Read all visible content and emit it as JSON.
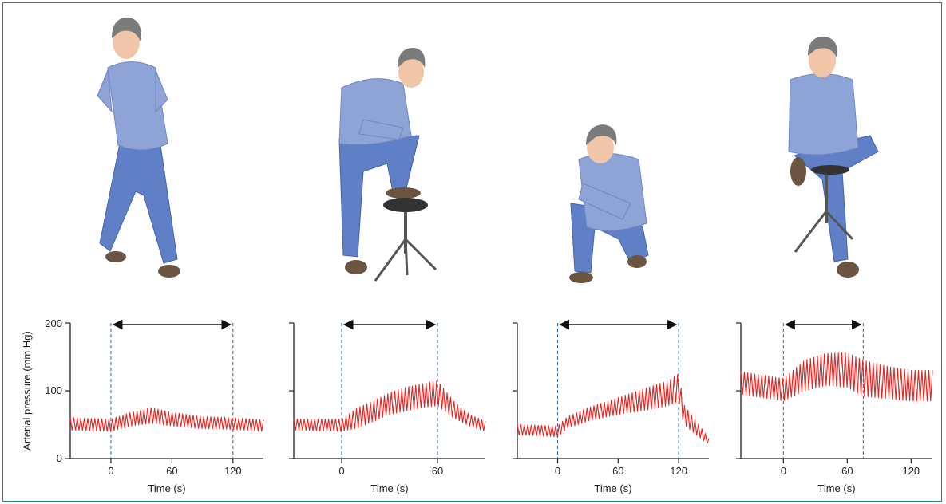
{
  "figure": {
    "ylabel": "Arterial pressure (mm Hg)",
    "y_ticks": [
      "200",
      "100",
      "0"
    ],
    "colors": {
      "frame": "#1f7f7a",
      "trace": "#e8231f",
      "shirt": "#8ea3d6",
      "jeans": "#5f7fc6",
      "hair": "#7b7b7b",
      "skin": "#f0c5a8",
      "shoes": "#6b5440",
      "stool": "#333333"
    }
  },
  "panels": [
    {
      "pose": "legs-crossed-standing",
      "xlabel": "Time (s)",
      "x_ticks": [
        "0",
        "60",
        "120"
      ],
      "tick_values": [
        0,
        60,
        120
      ],
      "xlim": [
        -40,
        150
      ],
      "interval": [
        0,
        120
      ]
    },
    {
      "pose": "foot-on-stool",
      "xlabel": "Time (s)",
      "x_ticks": [
        "0",
        "60"
      ],
      "tick_values": [
        0,
        60
      ],
      "xlim": [
        -30,
        90
      ],
      "interval": [
        0,
        60
      ]
    },
    {
      "pose": "squatting",
      "xlabel": "Time (s)",
      "x_ticks": [
        "0",
        "60",
        "120"
      ],
      "tick_values": [
        0,
        60,
        120
      ],
      "xlim": [
        -40,
        150
      ],
      "interval": [
        0,
        120
      ]
    },
    {
      "pose": "sitting-legs-crossed",
      "xlabel": "Time (s)",
      "x_ticks": [
        "0",
        "60",
        "120"
      ],
      "tick_values": [
        0,
        60,
        120
      ],
      "xlim": [
        -40,
        140
      ],
      "interval": [
        0,
        75
      ]
    }
  ],
  "chart_data": [
    {
      "type": "line",
      "xlabel": "Time (s)",
      "ylabel": "Arterial pressure (mm Hg)",
      "ylim": [
        0,
        200
      ],
      "xlim": [
        -40,
        150
      ],
      "series": [
        {
          "x": [
            -40,
            0,
            20,
            40,
            60,
            90,
            120,
            150
          ],
          "upper": [
            60,
            58,
            68,
            75,
            68,
            62,
            60,
            57
          ],
          "lower": [
            42,
            40,
            48,
            52,
            48,
            44,
            43,
            40
          ]
        }
      ]
    },
    {
      "type": "line",
      "xlabel": "Time (s)",
      "ylabel": "Arterial pressure (mm Hg)",
      "ylim": [
        0,
        200
      ],
      "xlim": [
        -30,
        90
      ],
      "series": [
        {
          "x": [
            -30,
            0,
            10,
            20,
            30,
            40,
            50,
            60,
            70,
            80,
            90
          ],
          "upper": [
            58,
            58,
            75,
            85,
            97,
            105,
            110,
            115,
            85,
            65,
            55
          ],
          "lower": [
            42,
            40,
            45,
            55,
            65,
            70,
            75,
            78,
            60,
            48,
            40
          ]
        }
      ]
    },
    {
      "type": "line",
      "xlabel": "Time (s)",
      "ylabel": "Arterial pressure (mm Hg)",
      "ylim": [
        0,
        200
      ],
      "xlim": [
        -40,
        150
      ],
      "series": [
        {
          "x": [
            -40,
            0,
            10,
            30,
            60,
            90,
            110,
            120,
            125,
            150
          ],
          "upper": [
            50,
            48,
            62,
            75,
            90,
            105,
            115,
            125,
            80,
            30
          ],
          "lower": [
            35,
            32,
            45,
            55,
            65,
            72,
            78,
            85,
            50,
            20
          ]
        }
      ]
    },
    {
      "type": "line",
      "xlabel": "Time (s)",
      "ylabel": "Arterial pressure (mm Hg)",
      "ylim": [
        0,
        200
      ],
      "xlim": [
        -40,
        140
      ],
      "series": [
        {
          "x": [
            -40,
            0,
            20,
            40,
            60,
            75,
            100,
            120
          ],
          "upper": [
            128,
            118,
            145,
            155,
            156,
            145,
            135,
            130
          ],
          "lower": [
            95,
            85,
            100,
            108,
            105,
            92,
            88,
            85
          ]
        }
      ]
    }
  ]
}
